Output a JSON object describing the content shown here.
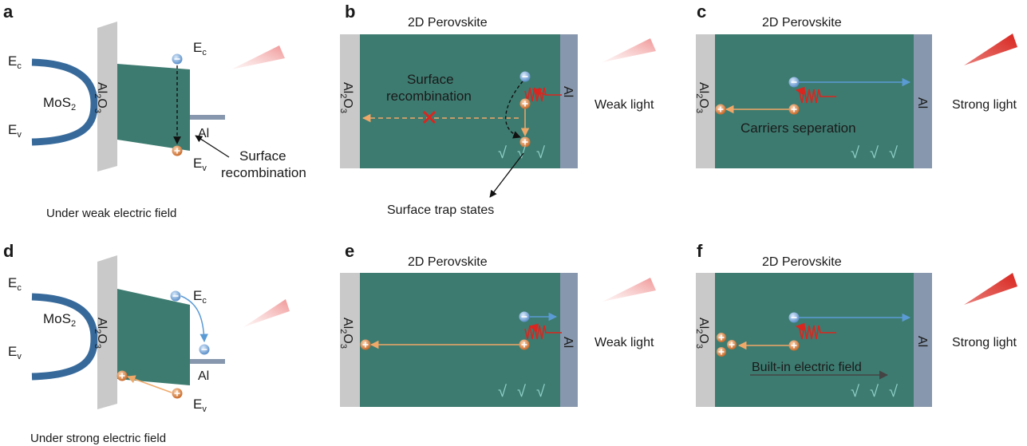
{
  "panel_labels": {
    "a": "a",
    "b": "b",
    "c": "c",
    "d": "d",
    "e": "e",
    "f": "f"
  },
  "band": {
    "ec_main": "E",
    "ec_sub": "c",
    "ev_main": "E",
    "ev_sub": "v",
    "mos2_main": "MoS",
    "mos2_sub": "2",
    "al2o3_al": "Al",
    "al2o3_sub1": "2",
    "al2o3_o": "O",
    "al2o3_sub2": "3",
    "al": "Al"
  },
  "captions": {
    "a": "Under weak electric field",
    "d": "Under strong electric field"
  },
  "annotations": {
    "surface_recombination_a_line1": "Surface",
    "surface_recombination_a_line2": "recombination",
    "surface_recombination_b_line1": "Surface",
    "surface_recombination_b_line2": "recombination",
    "surface_trap_states": "Surface trap states",
    "carriers_separation": "Carriers seperation",
    "built_in_field": "Built-in electric field"
  },
  "device": {
    "title": "2D Perovskite",
    "al_electrode": "Al",
    "trap_symbol": "√",
    "weak_light": "Weak light",
    "strong_light": "Strong light"
  },
  "colors": {
    "perovskite": "#3d7b70",
    "oxide": "#c9c9c9",
    "al_electrode": "#8797ad",
    "mos2": "#376a9b",
    "electron": "#6a9fd8",
    "hole": "#d98a4a",
    "photon": "#d9261f",
    "arrow_blue": "#5b9bd5",
    "arrow_orange": "#f0a868",
    "cross": "#d9261f",
    "trap": "#8fd0c8"
  }
}
